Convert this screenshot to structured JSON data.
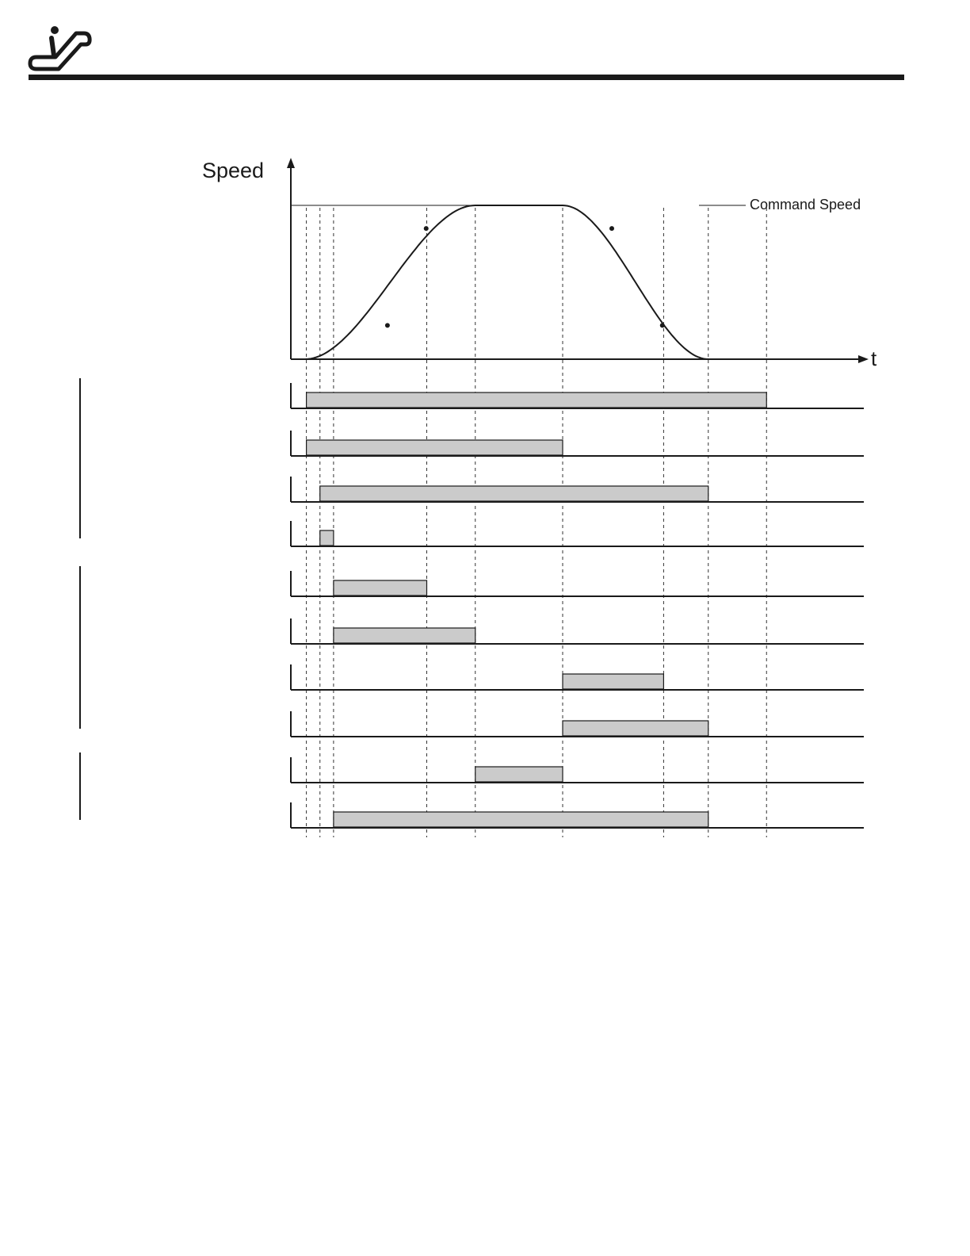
{
  "header": {
    "logo_icon": "escalator-icon"
  },
  "chart_data": {
    "type": "timing-diagram",
    "y_axis_label": "Speed",
    "x_axis_label": "t",
    "legend": "Command Speed",
    "colors": {
      "ink": "#1a1a1a",
      "bar_fill": "#cbcbcb",
      "dash": "#333333"
    },
    "event_times": [
      0,
      0.8,
      1.5,
      2.2,
      7.0,
      9.5,
      14.0,
      19.2,
      21.5,
      24.5
    ],
    "speed_profile": {
      "start": 2.2,
      "accel_end": 9.5,
      "decel_start": 14.0,
      "stop": 21.5,
      "command_speed": 1.0
    },
    "signals": [
      {
        "on": 0.8,
        "off": 24.5
      },
      {
        "on": 0.8,
        "off": 14.0
      },
      {
        "on": 1.5,
        "off": 21.5
      },
      {
        "on": 1.5,
        "off": 2.2
      },
      {
        "on": 2.2,
        "off": 7.0
      },
      {
        "on": 2.2,
        "off": 9.5
      },
      {
        "on": 14.0,
        "off": 19.2
      },
      {
        "on": 14.0,
        "off": 21.5
      },
      {
        "on": 9.5,
        "off": 14.0
      },
      {
        "on": 2.2,
        "off": 21.5
      }
    ],
    "signal_groups": [
      {
        "first": 0,
        "last": 3
      },
      {
        "first": 4,
        "last": 7
      },
      {
        "first": 8,
        "last": 9
      }
    ]
  }
}
